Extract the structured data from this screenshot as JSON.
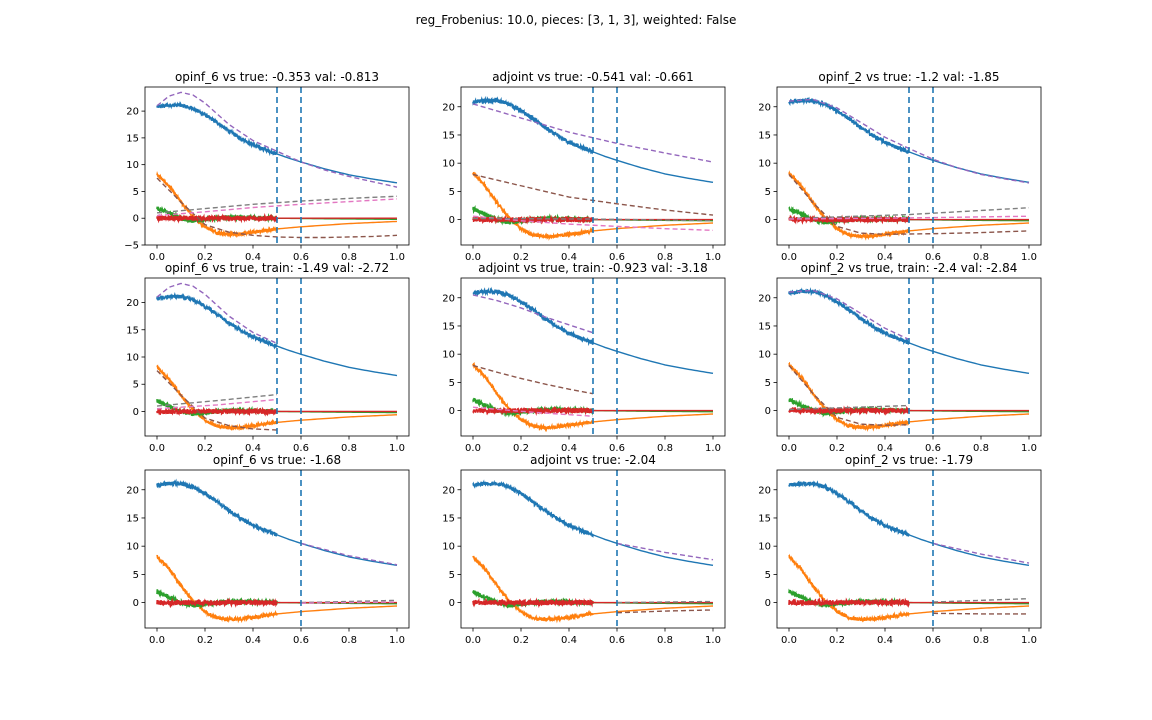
{
  "figure": {
    "suptitle": "reg_Frobenius: 10.0, pieces: [3, 1, 3], weighted: False"
  },
  "palette": {
    "s0": "#1f77b4",
    "s1": "#ff7f0e",
    "s2": "#2ca02c",
    "s3": "#d62728",
    "s4": "#9467bd",
    "s5": "#8c564b",
    "s6": "#e377c2",
    "s7": "#7f7f7f",
    "vline": "#1f77b4"
  },
  "chart_data": [
    {
      "type": "line",
      "title": "opinf_6 vs true: -0.353 val: -0.813",
      "xlim": [
        -0.05,
        1.05
      ],
      "ylim": [
        -5,
        24.5
      ],
      "xticks": [
        0.0,
        0.2,
        0.4,
        0.6,
        0.8,
        1.0
      ],
      "xtick_labels": [
        "0.0",
        "0.2",
        "0.4",
        "0.6",
        "0.8",
        "1.0"
      ],
      "yticks": [
        -5,
        0,
        5,
        10,
        15,
        20
      ],
      "ytick_labels": [
        "−5",
        "0",
        "5",
        "10",
        "15",
        "20"
      ],
      "noisy_until": 0.5,
      "vlines": [
        0.5,
        0.6
      ],
      "dashed_until": 1.0,
      "dashed": [
        {
          "color": "#9467bd",
          "x": [
            0,
            0.05,
            0.1,
            0.15,
            0.2,
            0.3,
            0.4,
            0.5,
            0.6,
            0.7,
            0.8,
            0.9,
            1.0
          ],
          "y": [
            21,
            22.8,
            23.5,
            23,
            21.5,
            17.5,
            14.5,
            12.5,
            10.5,
            9,
            7.8,
            6.8,
            5.8
          ]
        },
        {
          "color": "#8c564b",
          "x": [
            0,
            0.1,
            0.2,
            0.3,
            0.4,
            0.5,
            0.6,
            0.7,
            0.8,
            0.9,
            1.0
          ],
          "y": [
            7.5,
            3,
            -1.2,
            -2.6,
            -3.2,
            -3.5,
            -3.6,
            -3.6,
            -3.5,
            -3.4,
            -3.2
          ]
        },
        {
          "color": "#7f7f7f",
          "x": [
            0,
            0.2,
            0.4,
            0.6,
            0.8,
            1.0
          ],
          "y": [
            1,
            1.8,
            2.6,
            3.2,
            3.7,
            4.1
          ]
        },
        {
          "color": "#e377c2",
          "x": [
            0,
            0.2,
            0.4,
            0.6,
            0.8,
            1.0
          ],
          "y": [
            0.5,
            1.2,
            2,
            2.6,
            3.1,
            3.6
          ]
        }
      ]
    },
    {
      "type": "line",
      "title": "adjoint vs true: -0.541 val: -0.661",
      "xlim": [
        -0.05,
        1.05
      ],
      "ylim": [
        -4.5,
        23.5
      ],
      "xticks": [
        0.0,
        0.2,
        0.4,
        0.6,
        0.8,
        1.0
      ],
      "xtick_labels": [
        "0.0",
        "0.2",
        "0.4",
        "0.6",
        "0.8",
        "1.0"
      ],
      "yticks": [
        0,
        5,
        10,
        15,
        20
      ],
      "ytick_labels": [
        "0",
        "5",
        "10",
        "15",
        "20"
      ],
      "noisy_until": 0.5,
      "vlines": [
        0.5,
        0.6
      ],
      "dashed_until": 1.0,
      "dashed": [
        {
          "color": "#9467bd",
          "x": [
            0,
            0.2,
            0.4,
            0.6,
            0.8,
            1.0
          ],
          "y": [
            20.5,
            18,
            15.5,
            13.5,
            11.8,
            10.2
          ]
        },
        {
          "color": "#8c564b",
          "x": [
            0,
            0.2,
            0.4,
            0.6,
            0.8,
            1.0
          ],
          "y": [
            8,
            6,
            4,
            2.8,
            1.7,
            0.8
          ]
        },
        {
          "color": "#e377c2",
          "x": [
            0,
            0.2,
            0.4,
            0.6,
            0.8,
            1.0
          ],
          "y": [
            0.6,
            -0.2,
            -0.8,
            -1.2,
            -1.6,
            -1.9
          ]
        },
        {
          "color": "#7f7f7f",
          "x": [
            0,
            0.5,
            1.0
          ],
          "y": [
            0.2,
            0.1,
            -0.2
          ]
        }
      ]
    },
    {
      "type": "line",
      "title": "opinf_2 vs true: -1.2 val: -1.85",
      "xlim": [
        -0.05,
        1.05
      ],
      "ylim": [
        -4.5,
        23.5
      ],
      "xticks": [
        0.0,
        0.2,
        0.4,
        0.6,
        0.8,
        1.0
      ],
      "xtick_labels": [
        "0.0",
        "0.2",
        "0.4",
        "0.6",
        "0.8",
        "1.0"
      ],
      "yticks": [
        0,
        5,
        10,
        15,
        20
      ],
      "ytick_labels": [
        "0",
        "5",
        "10",
        "15",
        "20"
      ],
      "noisy_until": 0.5,
      "vlines": [
        0.5,
        0.6
      ],
      "dashed_until": 1.0,
      "dashed": [
        {
          "color": "#9467bd",
          "x": [
            0,
            0.1,
            0.2,
            0.3,
            0.4,
            0.5,
            0.6,
            0.7,
            0.8,
            0.9,
            1.0
          ],
          "y": [
            21,
            21.3,
            19.8,
            17.2,
            14.6,
            12.6,
            10.7,
            9.2,
            8,
            7.2,
            6.5
          ]
        },
        {
          "color": "#8c564b",
          "x": [
            0,
            0.1,
            0.2,
            0.3,
            0.4,
            0.6,
            0.8,
            1.0
          ],
          "y": [
            8,
            3,
            -1.2,
            -2.4,
            -2.6,
            -2.5,
            -2.3,
            -2.0
          ]
        },
        {
          "color": "#7f7f7f",
          "x": [
            0,
            0.5,
            1.0
          ],
          "y": [
            0.2,
            0.9,
            2.1
          ]
        },
        {
          "color": "#e377c2",
          "x": [
            0,
            0.5,
            1.0
          ],
          "y": [
            0.1,
            0.3,
            0.6
          ]
        }
      ]
    },
    {
      "type": "line",
      "title": "opinf_6 vs true, train: -1.49 val: -2.72",
      "xlim": [
        -0.05,
        1.05
      ],
      "ylim": [
        -4.5,
        24.5
      ],
      "xticks": [
        0.0,
        0.2,
        0.4,
        0.6,
        0.8,
        1.0
      ],
      "xtick_labels": [
        "0.0",
        "0.2",
        "0.4",
        "0.6",
        "0.8",
        "1.0"
      ],
      "yticks": [
        0,
        5,
        10,
        15,
        20
      ],
      "ytick_labels": [
        "0",
        "5",
        "10",
        "15",
        "20"
      ],
      "noisy_until": 0.5,
      "vlines": [
        0.5,
        0.6
      ],
      "dashed_until": 0.5,
      "dashed": [
        {
          "color": "#9467bd",
          "x": [
            0,
            0.05,
            0.1,
            0.15,
            0.2,
            0.3,
            0.4,
            0.5
          ],
          "y": [
            21,
            22.8,
            23.5,
            23,
            21.5,
            17.5,
            14.5,
            12.5
          ]
        },
        {
          "color": "#8c564b",
          "x": [
            0,
            0.1,
            0.2,
            0.3,
            0.4,
            0.5
          ],
          "y": [
            7.5,
            3,
            -1.2,
            -2.6,
            -3.2,
            -3.4
          ]
        },
        {
          "color": "#7f7f7f",
          "x": [
            0,
            0.25,
            0.5
          ],
          "y": [
            1,
            2,
            3.1
          ]
        },
        {
          "color": "#e377c2",
          "x": [
            0,
            0.25,
            0.5
          ],
          "y": [
            0.5,
            1.2,
            2.2
          ]
        }
      ]
    },
    {
      "type": "line",
      "title": "adjoint vs true, train: -0.923 val: -3.18",
      "xlim": [
        -0.05,
        1.05
      ],
      "ylim": [
        -4.5,
        23.5
      ],
      "xticks": [
        0.0,
        0.2,
        0.4,
        0.6,
        0.8,
        1.0
      ],
      "xtick_labels": [
        "0.0",
        "0.2",
        "0.4",
        "0.6",
        "0.8",
        "1.0"
      ],
      "yticks": [
        0,
        5,
        10,
        15,
        20
      ],
      "ytick_labels": [
        "0",
        "5",
        "10",
        "15",
        "20"
      ],
      "noisy_until": 0.5,
      "vlines": [
        0.5,
        0.6
      ],
      "dashed_until": 0.5,
      "dashed": [
        {
          "color": "#9467bd",
          "x": [
            0,
            0.1,
            0.2,
            0.3,
            0.4,
            0.5
          ],
          "y": [
            20.5,
            19.5,
            18.2,
            16.6,
            15.2,
            13.8
          ]
        },
        {
          "color": "#8c564b",
          "x": [
            0,
            0.1,
            0.2,
            0.3,
            0.4,
            0.5
          ],
          "y": [
            8,
            6.8,
            5.7,
            4.7,
            3.8,
            3.0
          ]
        },
        {
          "color": "#e377c2",
          "x": [
            0,
            0.25,
            0.5
          ],
          "y": [
            0.6,
            -0.3,
            -1.0
          ]
        }
      ]
    },
    {
      "type": "line",
      "title": "opinf_2 vs true, train: -2.4 val: -2.84",
      "xlim": [
        -0.05,
        1.05
      ],
      "ylim": [
        -4.5,
        23.5
      ],
      "xticks": [
        0.0,
        0.2,
        0.4,
        0.6,
        0.8,
        1.0
      ],
      "xtick_labels": [
        "0.0",
        "0.2",
        "0.4",
        "0.6",
        "0.8",
        "1.0"
      ],
      "yticks": [
        0,
        5,
        10,
        15,
        20
      ],
      "ytick_labels": [
        "0",
        "5",
        "10",
        "15",
        "20"
      ],
      "noisy_until": 0.5,
      "vlines": [
        0.5,
        0.6
      ],
      "dashed_until": 0.5,
      "dashed": [
        {
          "color": "#9467bd",
          "x": [
            0,
            0.1,
            0.2,
            0.3,
            0.4,
            0.5
          ],
          "y": [
            21,
            21.3,
            19.8,
            17.2,
            14.6,
            12.6
          ]
        },
        {
          "color": "#8c564b",
          "x": [
            0,
            0.1,
            0.2,
            0.3,
            0.4,
            0.5
          ],
          "y": [
            8,
            3,
            -1.2,
            -2.4,
            -2.6,
            -2.5
          ]
        },
        {
          "color": "#7f7f7f",
          "x": [
            0,
            0.5
          ],
          "y": [
            0.2,
            0.9
          ]
        }
      ]
    },
    {
      "type": "line",
      "title": "opinf_6 vs true: -1.68",
      "xlim": [
        -0.05,
        1.05
      ],
      "ylim": [
        -4.5,
        23.5
      ],
      "xticks": [
        0.0,
        0.2,
        0.4,
        0.6,
        0.8,
        1.0
      ],
      "xtick_labels": [
        "0.0",
        "0.2",
        "0.4",
        "0.6",
        "0.8",
        "1.0"
      ],
      "yticks": [
        0,
        5,
        10,
        15,
        20
      ],
      "ytick_labels": [
        "0",
        "5",
        "10",
        "15",
        "20"
      ],
      "noisy_until": 0.5,
      "vlines": [
        0.6
      ],
      "dashed_from": 0.6,
      "dashed": [
        {
          "color": "#9467bd",
          "x": [
            0.6,
            0.8,
            1.0
          ],
          "y": [
            10.5,
            8.3,
            6.7
          ]
        },
        {
          "color": "#7f7f7f",
          "x": [
            0.6,
            0.8,
            1.0
          ],
          "y": [
            0,
            0.2,
            0.4
          ]
        },
        {
          "color": "#e377c2",
          "x": [
            0.6,
            0.8,
            1.0
          ],
          "y": [
            -0.1,
            0,
            0.1
          ]
        }
      ]
    },
    {
      "type": "line",
      "title": "adjoint vs true: -2.04",
      "xlim": [
        -0.05,
        1.05
      ],
      "ylim": [
        -4.5,
        23.5
      ],
      "xticks": [
        0.0,
        0.2,
        0.4,
        0.6,
        0.8,
        1.0
      ],
      "xtick_labels": [
        "0.0",
        "0.2",
        "0.4",
        "0.6",
        "0.8",
        "1.0"
      ],
      "yticks": [
        0,
        5,
        10,
        15,
        20
      ],
      "ytick_labels": [
        "0",
        "5",
        "10",
        "15",
        "20"
      ],
      "noisy_until": 0.5,
      "vlines": [
        0.6
      ],
      "dashed_from": 0.6,
      "dashed": [
        {
          "color": "#9467bd",
          "x": [
            0.6,
            0.8,
            1.0
          ],
          "y": [
            10.5,
            8.9,
            7.6
          ]
        },
        {
          "color": "#8c564b",
          "x": [
            0.6,
            0.8,
            1.0
          ],
          "y": [
            -1.8,
            -1.5,
            -1.3
          ]
        },
        {
          "color": "#7f7f7f",
          "x": [
            0.6,
            0.8,
            1.0
          ],
          "y": [
            0,
            0.1,
            0.2
          ]
        }
      ]
    },
    {
      "type": "line",
      "title": "opinf_2 vs true: -1.79",
      "xlim": [
        -0.05,
        1.05
      ],
      "ylim": [
        -4.5,
        23.5
      ],
      "xticks": [
        0.0,
        0.2,
        0.4,
        0.6,
        0.8,
        1.0
      ],
      "xtick_labels": [
        "0.0",
        "0.2",
        "0.4",
        "0.6",
        "0.8",
        "1.0"
      ],
      "yticks": [
        0,
        5,
        10,
        15,
        20
      ],
      "ytick_labels": [
        "0",
        "5",
        "10",
        "15",
        "20"
      ],
      "noisy_until": 0.5,
      "vlines": [
        0.6
      ],
      "dashed_from": 0.6,
      "dashed": [
        {
          "color": "#9467bd",
          "x": [
            0.6,
            0.8,
            1.0
          ],
          "y": [
            10.5,
            8.6,
            7.0
          ]
        },
        {
          "color": "#8c564b",
          "x": [
            0.6,
            0.8,
            1.0
          ],
          "y": [
            -1.9,
            -2.0,
            -2.0
          ]
        },
        {
          "color": "#7f7f7f",
          "x": [
            0.6,
            0.8,
            1.0
          ],
          "y": [
            0.1,
            0.4,
            0.7
          ]
        }
      ]
    }
  ],
  "true_series": [
    {
      "color": "#1f77b4",
      "x": [
        0,
        0.05,
        0.1,
        0.15,
        0.2,
        0.25,
        0.3,
        0.35,
        0.4,
        0.45,
        0.5,
        0.55,
        0.6,
        0.7,
        0.8,
        0.9,
        1.0
      ],
      "y": [
        20.8,
        21.1,
        21.1,
        20.5,
        19.3,
        17.9,
        16.3,
        14.9,
        13.7,
        12.8,
        12.0,
        11.2,
        10.5,
        9.2,
        8.1,
        7.3,
        6.6
      ],
      "noise": 0.35
    },
    {
      "color": "#ff7f0e",
      "x": [
        0,
        0.05,
        0.1,
        0.15,
        0.2,
        0.25,
        0.3,
        0.35,
        0.4,
        0.45,
        0.5,
        0.6,
        0.7,
        0.8,
        0.9,
        1.0
      ],
      "y": [
        8.2,
        6.0,
        3.0,
        0.3,
        -1.6,
        -2.7,
        -3.0,
        -2.9,
        -2.6,
        -2.3,
        -2.0,
        -1.6,
        -1.3,
        -1.0,
        -0.8,
        -0.6
      ],
      "noise": 0.3
    },
    {
      "color": "#2ca02c",
      "x": [
        0,
        0.05,
        0.1,
        0.15,
        0.2,
        0.3,
        0.4,
        0.5,
        0.7,
        1.0
      ],
      "y": [
        1.9,
        1.0,
        0,
        -0.5,
        -0.2,
        0.2,
        0.1,
        0,
        -0.1,
        -0.2
      ],
      "noise": 0.4
    },
    {
      "color": "#d62728",
      "x": [
        0,
        0.1,
        0.2,
        0.3,
        0.4,
        0.5,
        0.7,
        1.0
      ],
      "y": [
        0,
        0,
        0,
        0,
        0,
        0,
        0,
        0
      ],
      "noise": 0.45
    }
  ]
}
